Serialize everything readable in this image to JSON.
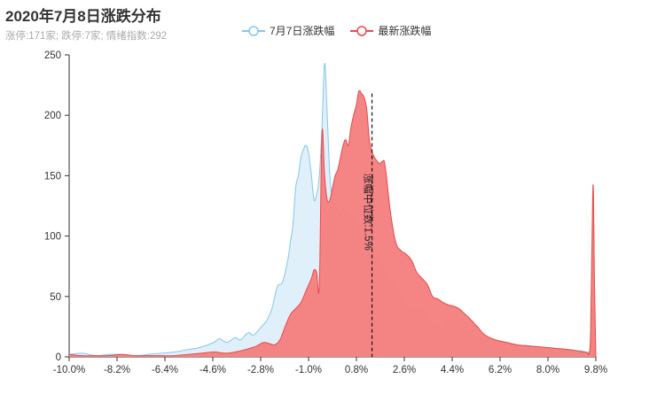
{
  "title": "2020年7月8日涨跌分布",
  "subtitle": "涨停:171家; 跌停:7家; 情绪指数:292",
  "legend": [
    {
      "label": "7月7日涨跌幅",
      "color": "#87c6e8"
    },
    {
      "label": "最新涨跌幅",
      "color": "#e84a4a"
    }
  ],
  "colors": {
    "prev_fill": "#dff0fa",
    "prev_line": "#87c6e8",
    "latest_fill": "#f47d7d",
    "latest_line": "#e84a4a"
  },
  "chart_data": {
    "type": "area",
    "x_tick_labels": [
      "-10.0%",
      "-8.2%",
      "-6.4%",
      "-4.6%",
      "-2.8%",
      "-1.0%",
      "0.8%",
      "2.6%",
      "4.4%",
      "6.2%",
      "8.0%",
      "9.8%"
    ],
    "xlim": [
      -10.0,
      10.0
    ],
    "ylim": [
      0,
      250
    ],
    "y_ticks": [
      0,
      50,
      100,
      150,
      200,
      250
    ],
    "median_label": "涨幅中位数:1.5%",
    "median_x": 1.5,
    "series": [
      {
        "name": "7月7日涨跌幅",
        "x": [
          -10.0,
          -9.5,
          -9.0,
          -8.5,
          -8.0,
          -7.5,
          -7.0,
          -6.5,
          -6.0,
          -5.5,
          -5.0,
          -4.5,
          -4.3,
          -4.0,
          -3.7,
          -3.5,
          -3.2,
          -3.0,
          -2.7,
          -2.5,
          -2.3,
          -2.1,
          -1.9,
          -1.7,
          -1.6,
          -1.5,
          -1.4,
          -1.3,
          -1.2,
          -1.1,
          -1.0,
          -0.9,
          -0.8,
          -0.7,
          -0.6,
          -0.5,
          -0.4,
          -0.3,
          -0.2,
          -0.1,
          0.0,
          0.1,
          0.2,
          0.3,
          0.4,
          0.5,
          0.6,
          0.8,
          1.0,
          1.2,
          1.4,
          1.6,
          1.8,
          2.0,
          2.2,
          2.4,
          2.6,
          2.8,
          3.0,
          3.2,
          3.4,
          3.6,
          3.8,
          4.0,
          4.2,
          4.4,
          4.6,
          4.8,
          5.0,
          5.2,
          5.5,
          5.8,
          6.2,
          6.6,
          7.0,
          7.5,
          8.0,
          8.5,
          9.0,
          9.3,
          9.5,
          9.6,
          9.7,
          9.8,
          9.9,
          10.0
        ],
        "values": [
          2,
          3,
          1,
          2,
          2,
          1,
          2,
          3,
          4,
          6,
          8,
          12,
          15,
          12,
          16,
          14,
          20,
          18,
          25,
          30,
          40,
          58,
          62,
          80,
          95,
          110,
          140,
          150,
          165,
          172,
          175,
          168,
          150,
          130,
          135,
          150,
          190,
          243,
          200,
          150,
          130,
          125,
          120,
          118,
          122,
          120,
          118,
          112,
          105,
          98,
          92,
          85,
          75,
          70,
          62,
          55,
          48,
          42,
          38,
          40,
          38,
          32,
          26,
          24,
          22,
          28,
          30,
          24,
          20,
          18,
          16,
          14,
          12,
          12,
          10,
          9,
          8,
          7,
          6,
          5,
          5,
          4,
          4,
          6,
          40,
          0
        ]
      },
      {
        "name": "最新涨跌幅",
        "x": [
          -10.0,
          -9.5,
          -9.0,
          -8.5,
          -8.0,
          -7.5,
          -7.0,
          -6.5,
          -6.0,
          -5.5,
          -5.0,
          -4.5,
          -4.0,
          -3.5,
          -3.0,
          -2.8,
          -2.6,
          -2.4,
          -2.2,
          -2.0,
          -1.8,
          -1.6,
          -1.4,
          -1.2,
          -1.0,
          -0.8,
          -0.7,
          -0.6,
          -0.5,
          -0.4,
          -0.3,
          -0.2,
          -0.1,
          0.0,
          0.1,
          0.2,
          0.3,
          0.4,
          0.5,
          0.6,
          0.7,
          0.8,
          0.9,
          1.0,
          1.1,
          1.2,
          1.3,
          1.4,
          1.5,
          1.6,
          1.7,
          1.8,
          1.9,
          2.0,
          2.2,
          2.4,
          2.6,
          2.8,
          3.0,
          3.2,
          3.4,
          3.6,
          3.8,
          4.0,
          4.2,
          4.4,
          4.6,
          4.8,
          5.0,
          5.2,
          5.5,
          5.8,
          6.2,
          6.6,
          7.0,
          7.5,
          8.0,
          8.5,
          9.0,
          9.3,
          9.5,
          9.6,
          9.7,
          9.75,
          9.8,
          9.85,
          9.9,
          9.95,
          10.0
        ],
        "values": [
          2,
          1,
          1,
          1,
          2,
          1,
          1,
          1,
          1,
          2,
          3,
          4,
          3,
          5,
          8,
          10,
          12,
          11,
          10,
          14,
          25,
          35,
          40,
          45,
          55,
          65,
          72,
          70,
          60,
          185,
          150,
          130,
          130,
          140,
          150,
          155,
          165,
          175,
          180,
          175,
          190,
          200,
          208,
          220,
          218,
          215,
          205,
          180,
          170,
          165,
          162,
          160,
          162,
          158,
          120,
          95,
          88,
          85,
          80,
          70,
          65,
          60,
          50,
          48,
          45,
          43,
          42,
          40,
          36,
          32,
          25,
          18,
          14,
          12,
          10,
          9,
          8,
          7,
          6,
          5,
          4,
          4,
          3,
          3,
          20,
          90,
          142,
          60,
          0
        ]
      }
    ]
  }
}
